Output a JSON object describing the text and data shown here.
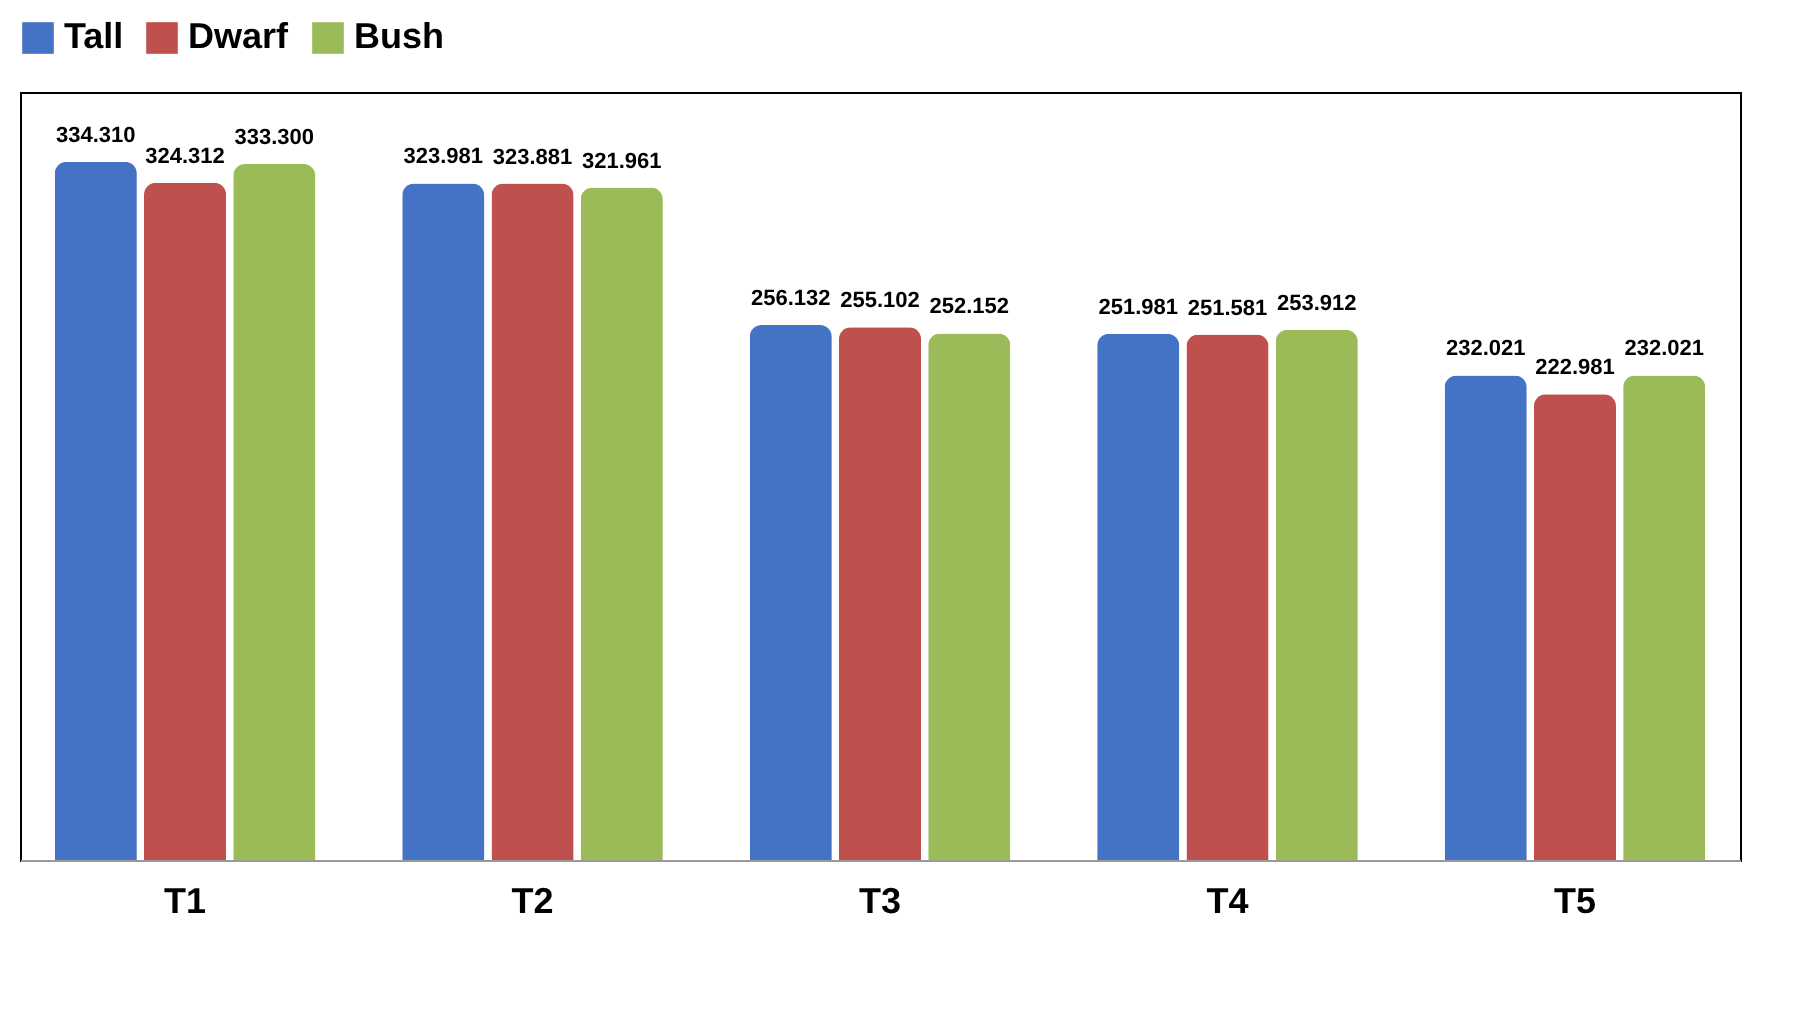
{
  "chart_data": {
    "type": "bar",
    "categories": [
      "T1",
      "T2",
      "T3",
      "T4",
      "T5"
    ],
    "series": [
      {
        "name": "Tall",
        "color": "#4472c4",
        "values": [
          334.31,
          323.981,
          256.132,
          251.981,
          232.021
        ],
        "value_labels": [
          "334.310",
          "323.981",
          "256.132",
          "251.981",
          "232.021"
        ]
      },
      {
        "name": "Dwarf",
        "color": "#c0504d",
        "values": [
          324.312,
          323.881,
          255.102,
          251.581,
          222.981
        ],
        "value_labels": [
          "324.312",
          "323.881",
          "255.102",
          "251.581",
          "222.981"
        ]
      },
      {
        "name": "Bush",
        "color": "#9bbb59",
        "values": [
          333.3,
          321.961,
          252.152,
          253.912,
          232.021
        ],
        "value_labels": [
          "333.300",
          "321.961",
          "252.152",
          "253.912",
          "232.021"
        ]
      }
    ],
    "legend": "top",
    "grid": false
  }
}
